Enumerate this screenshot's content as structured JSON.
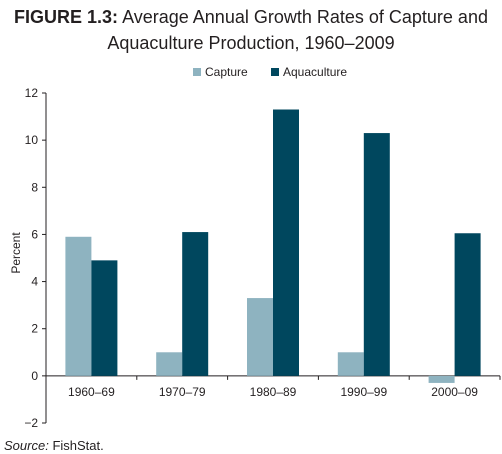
{
  "figure": {
    "label": "FIGURE 1.3:",
    "title_line1": "Average Annual Growth Rates of Capture and",
    "title_line2": "Aquaculture Production, 1960–2009"
  },
  "source": {
    "label": "Source:",
    "value": "FishStat."
  },
  "chart_data": {
    "type": "bar",
    "categories": [
      "1960–69",
      "1970–79",
      "1980–89",
      "1990–99",
      "2000–09"
    ],
    "series": [
      {
        "name": "Capture",
        "values": [
          5.9,
          1.0,
          3.3,
          1.0,
          -0.3
        ],
        "color": "#8eb3c0"
      },
      {
        "name": "Aquaculture",
        "values": [
          4.9,
          6.1,
          11.3,
          10.3,
          6.05
        ],
        "color": "#00475e"
      }
    ],
    "ylabel": "Percent",
    "ylim": [
      -2,
      12
    ],
    "yticks": [
      "−2",
      "0",
      "2",
      "4",
      "6",
      "8",
      "10",
      "12"
    ],
    "ytick_values": [
      -2,
      0,
      2,
      4,
      6,
      8,
      10,
      12
    ],
    "legend_position": "top",
    "grid": false
  }
}
